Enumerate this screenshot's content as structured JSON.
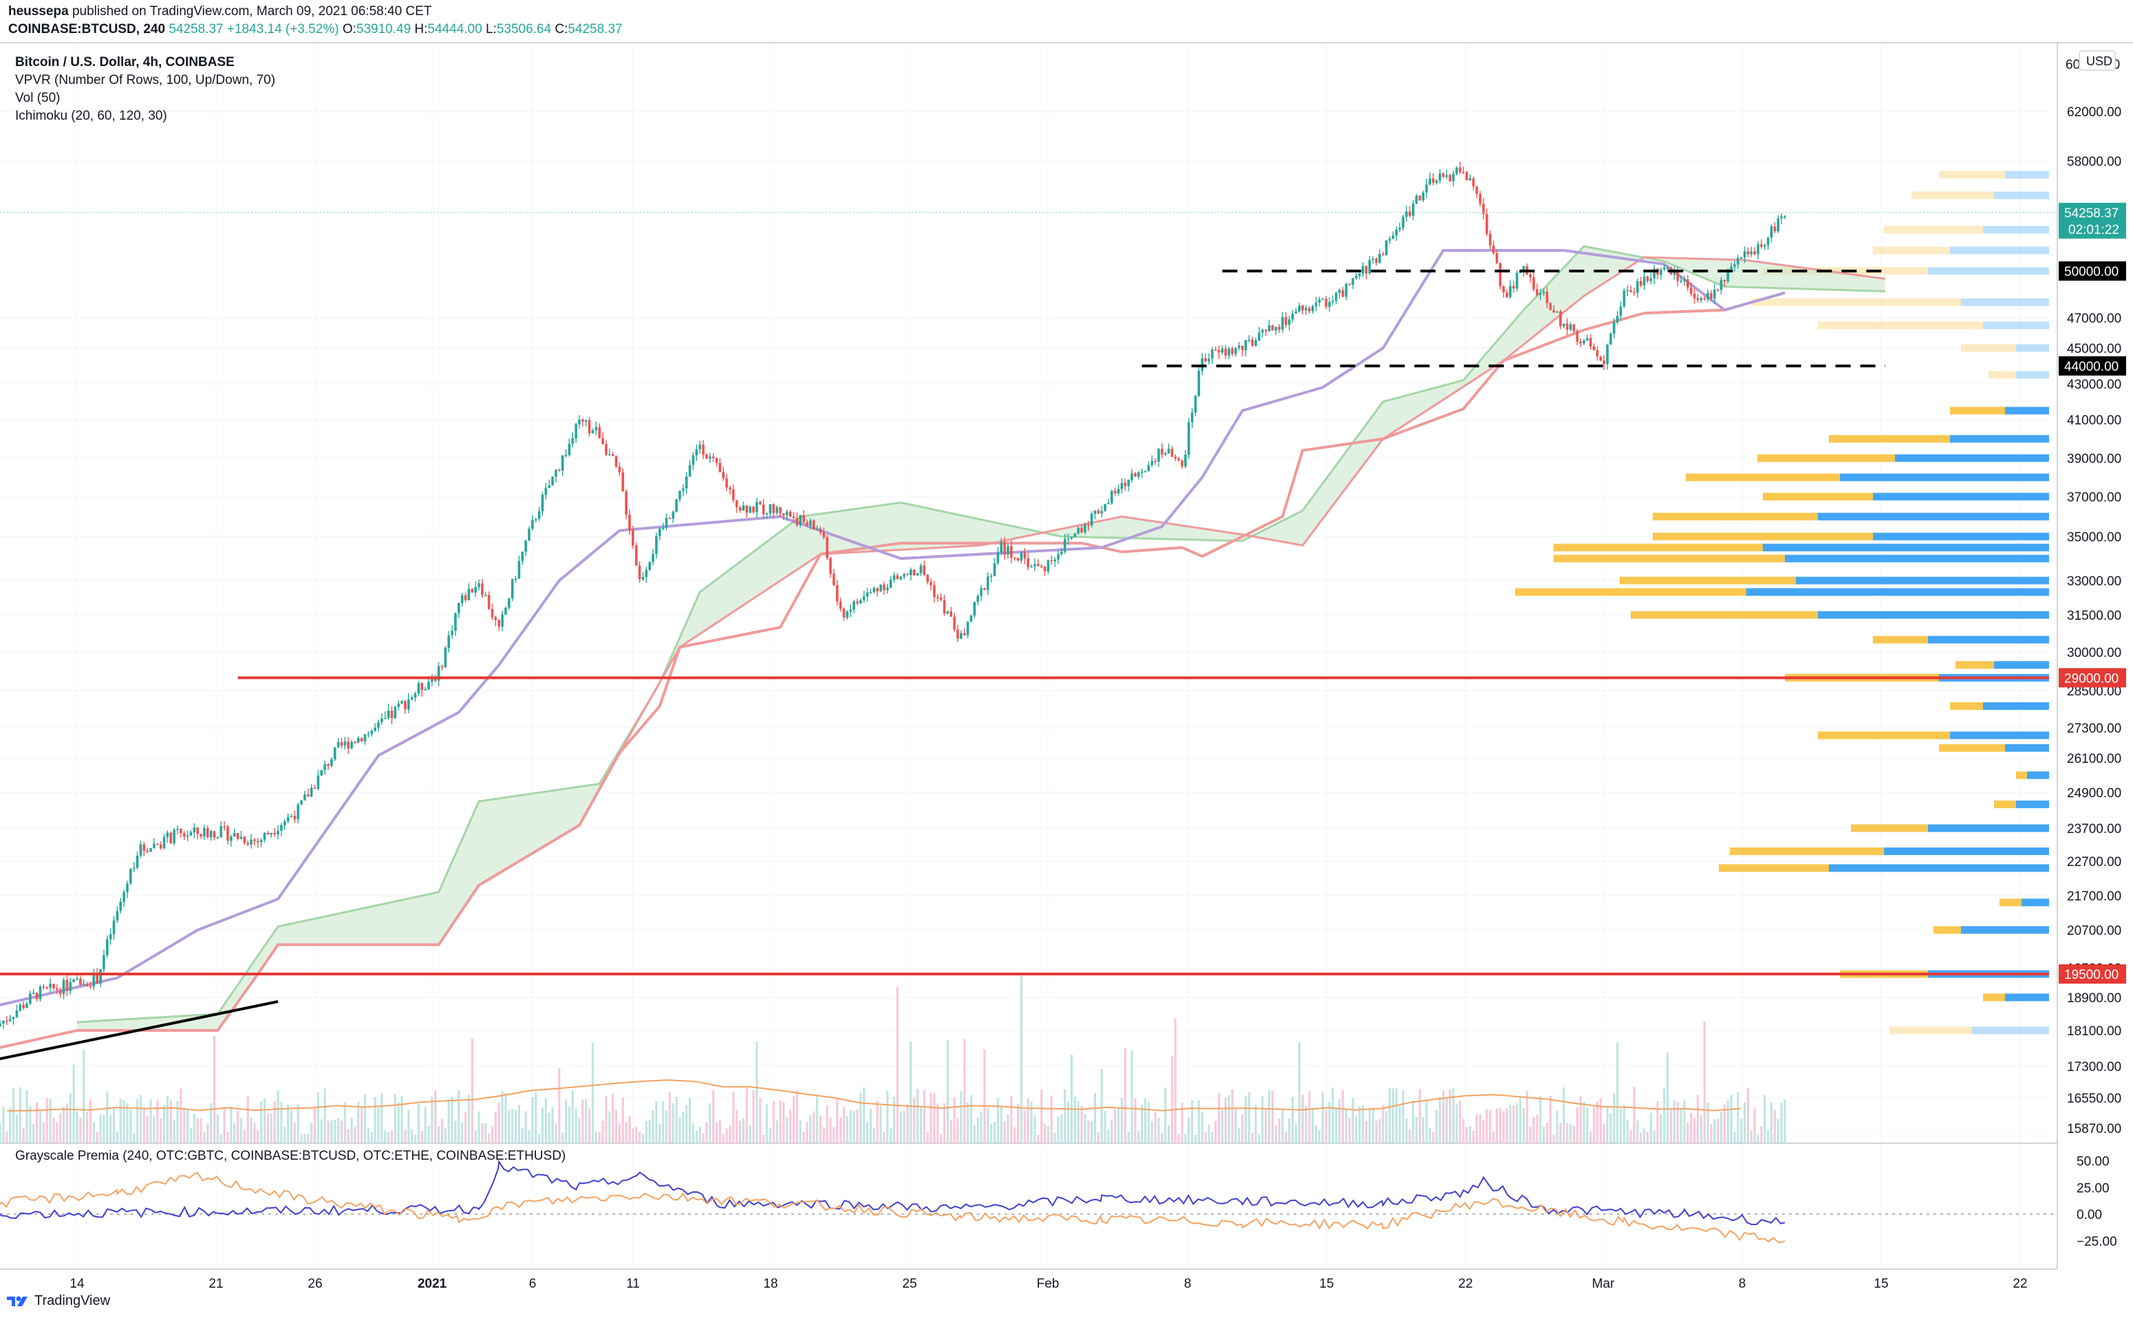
{
  "header": {
    "author": "heussepa",
    "published": "published on TradingView.com, March 09, 2021 06:58:40 CET",
    "symbol": "COINBASE:BTCUSD, 240",
    "last": "54258.37",
    "change": "+1843.14 (+3.52%)",
    "o_label": "O:",
    "o": "53910.49",
    "h_label": "H:",
    "h": "54444.00",
    "l_label": "L:",
    "l": "53506.64",
    "c_label": "C:",
    "c": "54258.37"
  },
  "legend": {
    "title": "Bitcoin / U.S. Dollar, 4h, COINBASE",
    "vpvr": "VPVR (Number Of Rows, 100, Up/Down, 70)",
    "vol": "Vol (50)",
    "ichimoku": "Ichimoku (20, 60, 120, 30)"
  },
  "sub_legend": "Grayscale Premia (240, OTC:GBTC, COINBASE:BTCUSD, OTC:ETHE, COINBASE:ETHUSD)",
  "footer": {
    "brand": "TradingView"
  },
  "colors": {
    "up": "#26a69a",
    "down": "#ef5350",
    "kijun": "#ef9a9a",
    "tenkan": "#b39ddb",
    "cloud_up": "#c8e6c9",
    "cloud_down": "#ffcdd2",
    "vp_up": "#42a5f5",
    "vp_down": "#f9c74f",
    "hline_red": "#e53935",
    "vol_ma": "#f4a261",
    "gbtc": "#3f3fcf",
    "ethe": "#f4a261"
  },
  "chart_data": {
    "type": "candlestick",
    "currency": "USD",
    "y_ticks": [
      "62000.00",
      "58000.00",
      "47000.00",
      "45000.00",
      "43000.00",
      "41000.00",
      "39000.00",
      "37000.00",
      "35000.00",
      "33000.00",
      "31500.00",
      "30000.00",
      "28500.00",
      "27300.00",
      "26100.00",
      "24900.00",
      "23700.00",
      "22700.00",
      "21700.00",
      "20700.00",
      "18900.00",
      "18100.00",
      "17300.00",
      "16550.00",
      "15870.00"
    ],
    "y_ticks_clipped": [
      "60000.00",
      "19500.00"
    ],
    "x_ticks": [
      "14",
      "21",
      "26",
      "2021",
      "6",
      "11",
      "18",
      "25",
      "Feb",
      "8",
      "15",
      "22",
      "Mar",
      "8",
      "15",
      "22"
    ],
    "price_labels": [
      {
        "value": "54258.37",
        "sub": "02:01:22",
        "kind": "last"
      },
      {
        "value": "50000.00",
        "kind": "black"
      },
      {
        "value": "44000.00",
        "kind": "black"
      },
      {
        "value": "29000.00",
        "kind": "red"
      },
      {
        "value": "19500.00",
        "kind": "red"
      }
    ],
    "horizontal_lines": [
      {
        "price": 50000,
        "style": "dashed",
        "color": "#000000",
        "from": "2021-02-09",
        "to": "2021-03-14"
      },
      {
        "price": 44000,
        "style": "dashed",
        "color": "#000000",
        "from": "2021-02-05",
        "to": "2021-03-14"
      },
      {
        "price": 29000,
        "style": "solid",
        "color": "#e53935",
        "from": "2020-12-22",
        "to": "2021-03-24"
      },
      {
        "price": 19500,
        "style": "solid",
        "color": "#e53935",
        "from": "2020-12-10",
        "to": "2021-03-24"
      }
    ],
    "trendline": [
      {
        "date": "2020-12-10",
        "price": 17450
      },
      {
        "date": "2020-12-24",
        "price": 18800
      }
    ],
    "close_path": [
      {
        "date": "2020-12-10",
        "price": 18200
      },
      {
        "date": "2020-12-12",
        "price": 19000
      },
      {
        "date": "2020-12-15",
        "price": 19400
      },
      {
        "date": "2020-12-16",
        "price": 21200
      },
      {
        "date": "2020-12-17",
        "price": 23000
      },
      {
        "date": "2020-12-19",
        "price": 23500
      },
      {
        "date": "2020-12-21",
        "price": 23600
      },
      {
        "date": "2020-12-23",
        "price": 23300
      },
      {
        "date": "2020-12-25",
        "price": 24300
      },
      {
        "date": "2020-12-27",
        "price": 26500
      },
      {
        "date": "2020-12-29",
        "price": 27300
      },
      {
        "date": "2021-01-01",
        "price": 29200
      },
      {
        "date": "2021-01-02",
        "price": 32000
      },
      {
        "date": "2021-01-03",
        "price": 33000
      },
      {
        "date": "2021-01-04",
        "price": 30800
      },
      {
        "date": "2021-01-05",
        "price": 33800
      },
      {
        "date": "2021-01-06",
        "price": 36500
      },
      {
        "date": "2021-01-08",
        "price": 40800
      },
      {
        "date": "2021-01-09",
        "price": 40300
      },
      {
        "date": "2021-01-10",
        "price": 38000
      },
      {
        "date": "2021-01-11",
        "price": 33000
      },
      {
        "date": "2021-01-13",
        "price": 37200
      },
      {
        "date": "2021-01-14",
        "price": 39800
      },
      {
        "date": "2021-01-16",
        "price": 36500
      },
      {
        "date": "2021-01-18",
        "price": 36300
      },
      {
        "date": "2021-01-20",
        "price": 35300
      },
      {
        "date": "2021-01-21",
        "price": 31500
      },
      {
        "date": "2021-01-23",
        "price": 32800
      },
      {
        "date": "2021-01-25",
        "price": 33500
      },
      {
        "date": "2021-01-27",
        "price": 30500
      },
      {
        "date": "2021-01-29",
        "price": 34500
      },
      {
        "date": "2021-01-31",
        "price": 33500
      },
      {
        "date": "2021-02-02",
        "price": 35500
      },
      {
        "date": "2021-02-04",
        "price": 37500
      },
      {
        "date": "2021-02-06",
        "price": 39500
      },
      {
        "date": "2021-02-07",
        "price": 38500
      },
      {
        "date": "2021-02-08",
        "price": 44500
      },
      {
        "date": "2021-02-10",
        "price": 45000
      },
      {
        "date": "2021-02-13",
        "price": 47500
      },
      {
        "date": "2021-02-15",
        "price": 48500
      },
      {
        "date": "2021-02-17",
        "price": 51500
      },
      {
        "date": "2021-02-19",
        "price": 56000
      },
      {
        "date": "2021-02-21",
        "price": 57500
      },
      {
        "date": "2021-02-22",
        "price": 54000
      },
      {
        "date": "2021-02-23",
        "price": 48500
      },
      {
        "date": "2021-02-24",
        "price": 50000
      },
      {
        "date": "2021-02-26",
        "price": 46500
      },
      {
        "date": "2021-02-28",
        "price": 44500
      },
      {
        "date": "2021-03-01",
        "price": 48500
      },
      {
        "date": "2021-03-03",
        "price": 50500
      },
      {
        "date": "2021-03-05",
        "price": 48000
      },
      {
        "date": "2021-03-07",
        "price": 51000
      },
      {
        "date": "2021-03-08",
        "price": 52300
      },
      {
        "date": "2021-03-09",
        "price": 54258
      }
    ],
    "kijun": [
      {
        "date": "2020-12-10",
        "price": 17700
      },
      {
        "date": "2020-12-14",
        "price": 18100
      },
      {
        "date": "2020-12-21",
        "price": 18100
      },
      {
        "date": "2020-12-23",
        "price": 19500
      },
      {
        "date": "2020-12-24",
        "price": 20300
      },
      {
        "date": "2021-01-01",
        "price": 20300
      },
      {
        "date": "2021-01-03",
        "price": 22000
      },
      {
        "date": "2021-01-08",
        "price": 23800
      },
      {
        "date": "2021-01-10",
        "price": 26300
      },
      {
        "date": "2021-01-12",
        "price": 28000
      },
      {
        "date": "2021-01-13",
        "price": 30200
      },
      {
        "date": "2021-01-18",
        "price": 31000
      },
      {
        "date": "2021-01-20",
        "price": 34200
      },
      {
        "date": "2021-01-24",
        "price": 34700
      },
      {
        "date": "2021-02-02",
        "price": 34700
      },
      {
        "date": "2021-02-04",
        "price": 34300
      },
      {
        "date": "2021-02-07",
        "price": 34500
      },
      {
        "date": "2021-02-08",
        "price": 34100
      },
      {
        "date": "2021-02-10",
        "price": 35000
      },
      {
        "date": "2021-02-12",
        "price": 36000
      },
      {
        "date": "2021-02-13",
        "price": 39400
      },
      {
        "date": "2021-02-17",
        "price": 40000
      },
      {
        "date": "2021-02-21",
        "price": 41600
      },
      {
        "date": "2021-02-23",
        "price": 44300
      },
      {
        "date": "2021-02-27",
        "price": 46200
      },
      {
        "date": "2021-03-02",
        "price": 47300
      },
      {
        "date": "2021-03-06",
        "price": 47500
      },
      {
        "date": "2021-03-09",
        "price": 48600
      }
    ],
    "tenkan": [
      {
        "date": "2020-12-10",
        "price": 18700
      },
      {
        "date": "2020-12-16",
        "price": 19400
      },
      {
        "date": "2020-12-20",
        "price": 20700
      },
      {
        "date": "2020-12-24",
        "price": 21600
      },
      {
        "date": "2020-12-29",
        "price": 26200
      },
      {
        "date": "2021-01-02",
        "price": 27800
      },
      {
        "date": "2021-01-04",
        "price": 29500
      },
      {
        "date": "2021-01-07",
        "price": 33000
      },
      {
        "date": "2021-01-10",
        "price": 35300
      },
      {
        "date": "2021-01-18",
        "price": 36000
      },
      {
        "date": "2021-01-24",
        "price": 34000
      },
      {
        "date": "2021-02-03",
        "price": 34500
      },
      {
        "date": "2021-02-06",
        "price": 35500
      },
      {
        "date": "2021-02-08",
        "price": 38000
      },
      {
        "date": "2021-02-10",
        "price": 41500
      },
      {
        "date": "2021-02-14",
        "price": 42800
      },
      {
        "date": "2021-02-17",
        "price": 45000
      },
      {
        "date": "2021-02-20",
        "price": 51500
      },
      {
        "date": "2021-02-26",
        "price": 51500
      },
      {
        "date": "2021-03-03",
        "price": 50500
      },
      {
        "date": "2021-03-06",
        "price": 47500
      },
      {
        "date": "2021-03-09",
        "price": 48600
      }
    ],
    "span_a": [
      {
        "date": "2020-12-14",
        "price": 18300
      },
      {
        "date": "2020-12-21",
        "price": 18500
      },
      {
        "date": "2020-12-24",
        "price": 20800
      },
      {
        "date": "2021-01-01",
        "price": 21800
      },
      {
        "date": "2021-01-03",
        "price": 24600
      },
      {
        "date": "2021-01-09",
        "price": 25200
      },
      {
        "date": "2021-01-12",
        "price": 28800
      },
      {
        "date": "2021-01-14",
        "price": 32500
      },
      {
        "date": "2021-01-19",
        "price": 36000
      },
      {
        "date": "2021-01-24",
        "price": 36700
      },
      {
        "date": "2021-02-01",
        "price": 35000
      },
      {
        "date": "2021-02-10",
        "price": 34800
      },
      {
        "date": "2021-02-13",
        "price": 36300
      },
      {
        "date": "2021-02-17",
        "price": 42000
      },
      {
        "date": "2021-02-21",
        "price": 43200
      },
      {
        "date": "2021-02-24",
        "price": 47500
      },
      {
        "date": "2021-02-27",
        "price": 51800
      },
      {
        "date": "2021-03-03",
        "price": 50700
      },
      {
        "date": "2021-03-06",
        "price": 49000
      },
      {
        "date": "2021-03-14",
        "price": 48700
      }
    ],
    "span_b": [
      {
        "date": "2020-12-14",
        "price": 18100
      },
      {
        "date": "2020-12-21",
        "price": 18100
      },
      {
        "date": "2020-12-23",
        "price": 19500
      },
      {
        "date": "2020-12-24",
        "price": 20300
      },
      {
        "date": "2021-01-01",
        "price": 20300
      },
      {
        "date": "2021-01-03",
        "price": 22000
      },
      {
        "date": "2021-01-08",
        "price": 23800
      },
      {
        "date": "2021-01-10",
        "price": 26300
      },
      {
        "date": "2021-01-13",
        "price": 30200
      },
      {
        "date": "2021-01-20",
        "price": 34200
      },
      {
        "date": "2021-01-28",
        "price": 34600
      },
      {
        "date": "2021-02-04",
        "price": 36000
      },
      {
        "date": "2021-02-10",
        "price": 35100
      },
      {
        "date": "2021-02-13",
        "price": 34600
      },
      {
        "date": "2021-02-17",
        "price": 40000
      },
      {
        "date": "2021-02-23",
        "price": 44300
      },
      {
        "date": "2021-02-27",
        "price": 48400
      },
      {
        "date": "2021-03-02",
        "price": 51000
      },
      {
        "date": "2021-03-07",
        "price": 50800
      },
      {
        "date": "2021-03-14",
        "price": 49500
      }
    ],
    "volume_profile": [
      {
        "price": 57000,
        "up": 0.08,
        "down": 0.12
      },
      {
        "price": 55500,
        "up": 0.1,
        "down": 0.15
      },
      {
        "price": 53000,
        "up": 0.12,
        "down": 0.18
      },
      {
        "price": 51500,
        "up": 0.18,
        "down": 0.14
      },
      {
        "price": 50000,
        "up": 0.22,
        "down": 0.3
      },
      {
        "price": 48000,
        "up": 0.16,
        "down": 0.38
      },
      {
        "price": 46500,
        "up": 0.12,
        "down": 0.3
      },
      {
        "price": 45000,
        "up": 0.06,
        "down": 0.1
      },
      {
        "price": 43500,
        "up": 0.06,
        "down": 0.05
      },
      {
        "price": 41500,
        "up": 0.08,
        "down": 0.1
      },
      {
        "price": 40000,
        "up": 0.18,
        "down": 0.22
      },
      {
        "price": 39000,
        "up": 0.28,
        "down": 0.25
      },
      {
        "price": 38000,
        "up": 0.38,
        "down": 0.28
      },
      {
        "price": 37000,
        "up": 0.32,
        "down": 0.2
      },
      {
        "price": 36000,
        "up": 0.42,
        "down": 0.3
      },
      {
        "price": 35000,
        "up": 0.32,
        "down": 0.4
      },
      {
        "price": 34500,
        "up": 0.52,
        "down": 0.38
      },
      {
        "price": 34000,
        "up": 0.48,
        "down": 0.42
      },
      {
        "price": 33000,
        "up": 0.46,
        "down": 0.32
      },
      {
        "price": 32500,
        "up": 0.55,
        "down": 0.42
      },
      {
        "price": 31500,
        "up": 0.42,
        "down": 0.34
      },
      {
        "price": 30500,
        "up": 0.22,
        "down": 0.1
      },
      {
        "price": 29500,
        "up": 0.1,
        "down": 0.07
      },
      {
        "price": 29000,
        "up": 0.2,
        "down": 0.28
      },
      {
        "price": 28000,
        "up": 0.12,
        "down": 0.06
      },
      {
        "price": 27000,
        "up": 0.18,
        "down": 0.24
      },
      {
        "price": 26500,
        "up": 0.08,
        "down": 0.12
      },
      {
        "price": 25500,
        "up": 0.04,
        "down": 0.02
      },
      {
        "price": 24500,
        "up": 0.06,
        "down": 0.04
      },
      {
        "price": 23700,
        "up": 0.22,
        "down": 0.14
      },
      {
        "price": 23000,
        "up": 0.3,
        "down": 0.28
      },
      {
        "price": 22500,
        "up": 0.4,
        "down": 0.2
      },
      {
        "price": 21500,
        "up": 0.05,
        "down": 0.04
      },
      {
        "price": 20700,
        "up": 0.16,
        "down": 0.05
      },
      {
        "price": 19500,
        "up": 0.22,
        "down": 0.16
      },
      {
        "price": 18900,
        "up": 0.08,
        "down": 0.04
      },
      {
        "price": 18100,
        "up": 0.14,
        "down": 0.15
      }
    ],
    "premia_axis": [
      "50.00",
      "25.00",
      "0.00",
      "−25.00"
    ],
    "premia_gbtc": [
      {
        "date": "2020-12-10",
        "value": 0
      },
      {
        "date": "2021-01-03",
        "value": 5
      },
      {
        "date": "2021-01-04",
        "value": 45
      },
      {
        "date": "2021-01-08",
        "value": 25
      },
      {
        "date": "2021-01-11",
        "value": 35
      },
      {
        "date": "2021-01-15",
        "value": 10
      },
      {
        "date": "2021-01-20",
        "value": 10
      },
      {
        "date": "2021-01-27",
        "value": 5
      },
      {
        "date": "2021-02-03",
        "value": 15
      },
      {
        "date": "2021-02-10",
        "value": 12
      },
      {
        "date": "2021-02-17",
        "value": 10
      },
      {
        "date": "2021-02-21",
        "value": 20
      },
      {
        "date": "2021-02-22",
        "value": 30
      },
      {
        "date": "2021-02-25",
        "value": 5
      },
      {
        "date": "2021-03-04",
        "value": 0
      },
      {
        "date": "2021-03-09",
        "value": -8
      }
    ],
    "premia_ethe": [
      {
        "date": "2020-12-10",
        "value": 10
      },
      {
        "date": "2020-12-16",
        "value": 20
      },
      {
        "date": "2020-12-20",
        "value": 35
      },
      {
        "date": "2020-12-25",
        "value": 15
      },
      {
        "date": "2021-01-02",
        "value": -5
      },
      {
        "date": "2021-01-05",
        "value": 10
      },
      {
        "date": "2021-01-11",
        "value": 18
      },
      {
        "date": "2021-01-20",
        "value": 8
      },
      {
        "date": "2021-01-27",
        "value": -3
      },
      {
        "date": "2021-02-03",
        "value": -5
      },
      {
        "date": "2021-02-10",
        "value": -8
      },
      {
        "date": "2021-02-17",
        "value": -10
      },
      {
        "date": "2021-02-22",
        "value": 12
      },
      {
        "date": "2021-03-01",
        "value": -8
      },
      {
        "date": "2021-03-09",
        "value": -25
      }
    ]
  }
}
